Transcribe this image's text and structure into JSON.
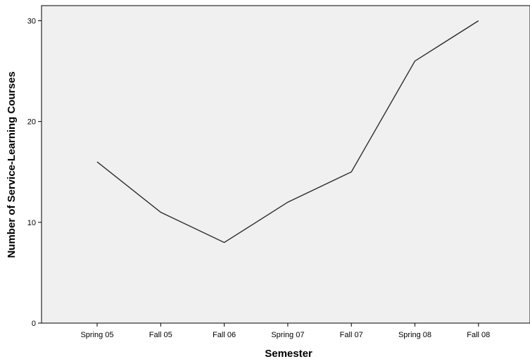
{
  "chart_data": {
    "type": "line",
    "title": "",
    "xlabel": "Semester",
    "ylabel": "Number of Service-Learning Courses",
    "categories": [
      "Spring 05",
      "Fall 05",
      "Fall 06",
      "Spring 07",
      "Fall 07",
      "Spring 08",
      "Fall 08"
    ],
    "series": [
      {
        "values": [
          16,
          11,
          8,
          12,
          15,
          26,
          30
        ]
      }
    ],
    "ylim": [
      0,
      31.5
    ],
    "yticks": [
      0,
      10,
      20,
      30
    ],
    "grid": false,
    "legend": "none",
    "colors": {
      "plot_background": "#f0f0f0",
      "line": "#2b2b2b",
      "axis": "#000000"
    }
  }
}
